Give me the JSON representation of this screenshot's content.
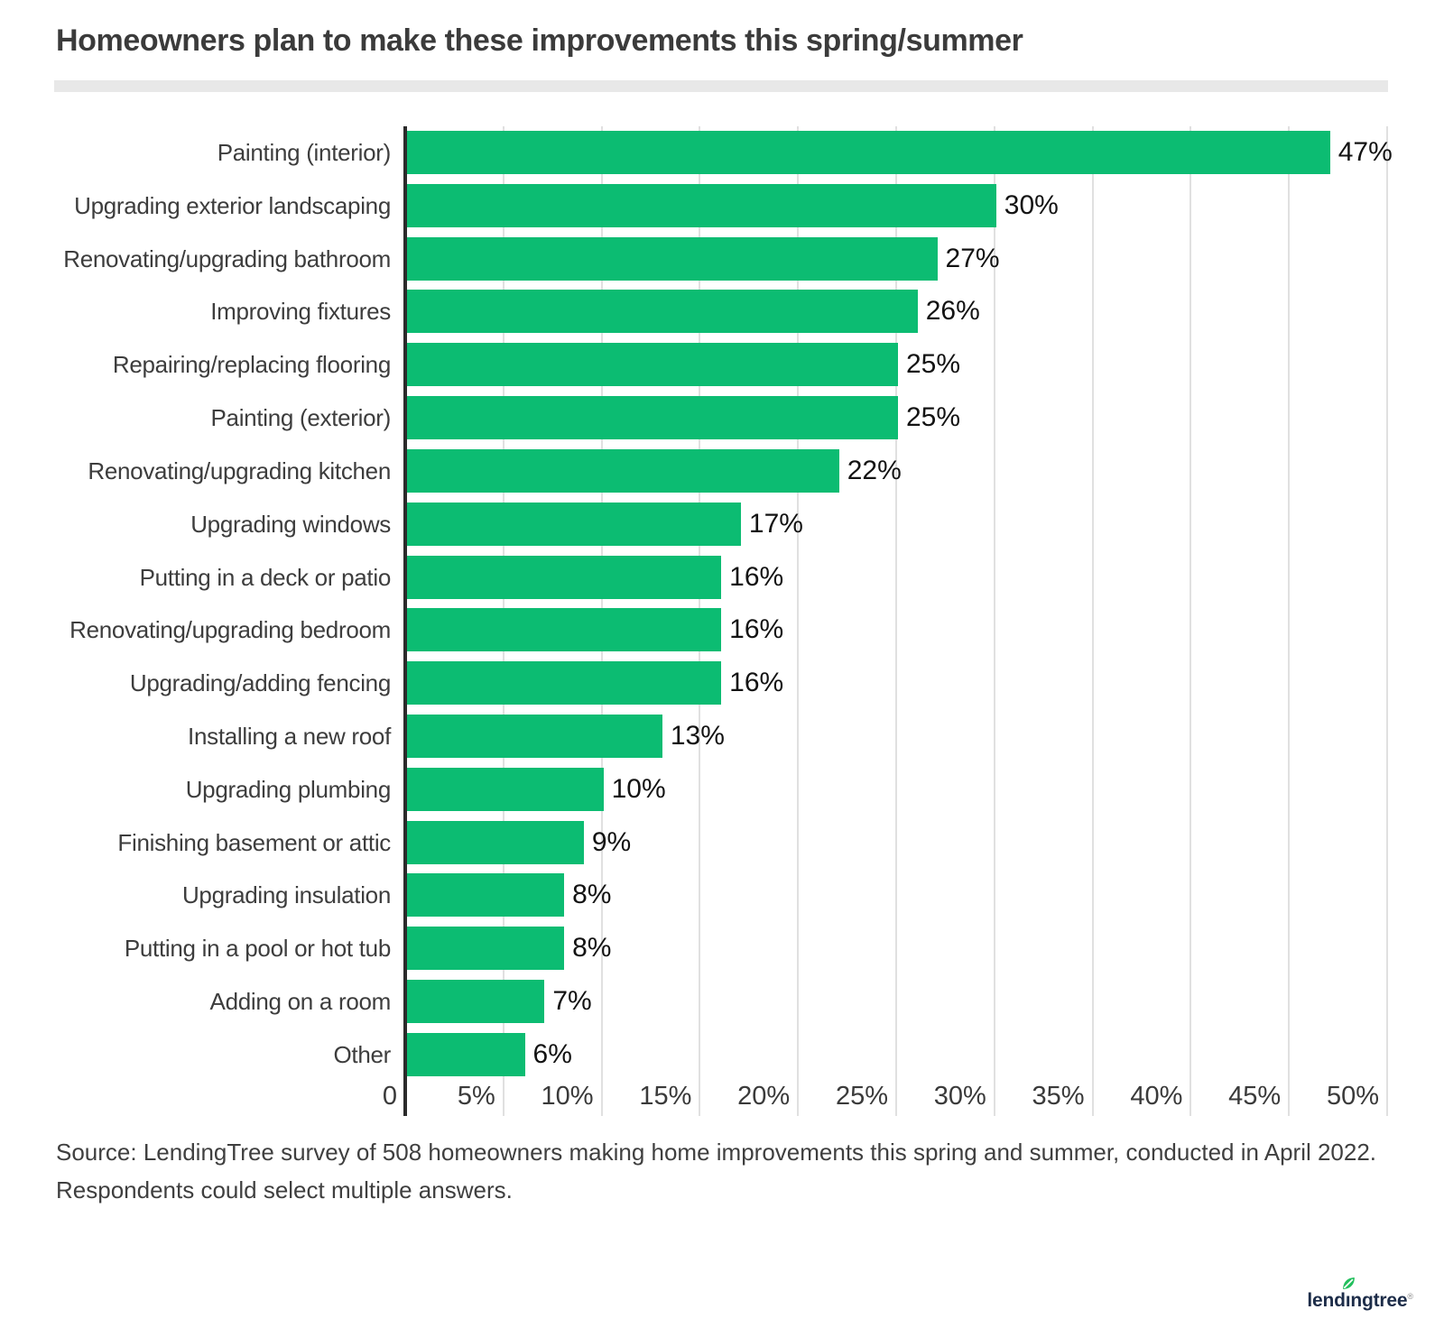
{
  "title": "Homeowners plan to make these improvements this spring/summer",
  "chart_data": {
    "type": "bar",
    "orientation": "horizontal",
    "title": "Homeowners plan to make these improvements this spring/summer",
    "categories": [
      "Painting (interior)",
      "Upgrading exterior landscaping",
      "Renovating/upgrading bathroom",
      "Improving fixtures",
      "Repairing/replacing flooring",
      "Painting (exterior)",
      "Renovating/upgrading kitchen",
      "Upgrading windows",
      "Putting in a deck or patio",
      "Renovating/upgrading bedroom",
      "Upgrading/adding fencing",
      "Installing a new roof",
      "Upgrading plumbing",
      "Finishing basement or attic",
      "Upgrading insulation",
      "Putting in a pool or hot tub",
      "Adding on a room",
      "Other"
    ],
    "values": [
      47,
      30,
      27,
      26,
      25,
      25,
      22,
      17,
      16,
      16,
      16,
      13,
      10,
      9,
      8,
      8,
      7,
      6
    ],
    "value_labels": [
      "47%",
      "30%",
      "27%",
      "26%",
      "25%",
      "25%",
      "22%",
      "17%",
      "16%",
      "16%",
      "16%",
      "13%",
      "10%",
      "9%",
      "8%",
      "8%",
      "7%",
      "6%"
    ],
    "xlabel": "",
    "ylabel": "",
    "xlim": [
      0,
      50
    ],
    "x_tick_values": [
      0,
      5,
      10,
      15,
      20,
      25,
      30,
      35,
      40,
      45,
      50
    ],
    "x_tick_labels": [
      "0",
      "5%",
      "10%",
      "15%",
      "20%",
      "25%",
      "30%",
      "35%",
      "40%",
      "45%",
      "50%"
    ],
    "grid": true,
    "legend": false
  },
  "source": {
    "line1": "Source: LendingTree survey of 508 homeowners making home improvements this spring and summer, conducted in April 2022.",
    "line2": "Respondents could select multiple answers."
  },
  "logo": {
    "text": "lendingtree",
    "registered": "®"
  },
  "colors": {
    "bar": "#0cbc72",
    "axis": "#2b2b2b",
    "gridline": "#e0e0e0",
    "title_text": "#3b3b3b",
    "label_text": "#3d3d3d",
    "value_text": "#131313",
    "divider": "#e8e8e8",
    "logo_navy": "#1d2d49",
    "logo_leaf": "#23bf5d"
  }
}
